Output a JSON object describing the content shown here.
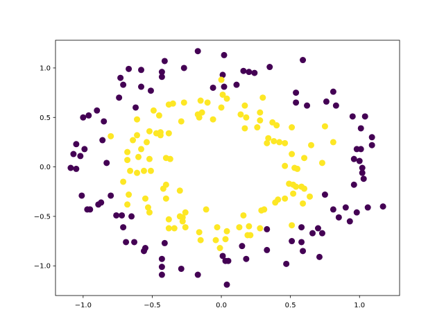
{
  "chart_data": {
    "type": "scatter",
    "xlim": [
      -1.2,
      1.29
    ],
    "ylim": [
      -1.3,
      1.28
    ],
    "xticks": [
      {
        "value": -1,
        "label": "−1.0"
      },
      {
        "value": -0.5,
        "label": "−0.5"
      },
      {
        "value": 0,
        "label": "0.0"
      },
      0.5,
      {
        "value": 1,
        "label": "1.0"
      }
    ],
    "yticks": [
      {
        "value": -1,
        "label": "−1.0"
      },
      {
        "value": -0.5,
        "label": "−0.5"
      },
      {
        "value": 0,
        "label": "0.0"
      },
      0.5,
      {
        "value": 1,
        "label": "1.0"
      }
    ],
    "grid": false,
    "series": [
      {
        "color": "#440154",
        "x": [
          -0.17,
          0.02,
          -0.41,
          -0.27,
          0.35,
          0.59,
          0.16,
          0.2,
          0.24,
          -0.67,
          -0.58,
          -0.43,
          -0.43,
          -0.73,
          0.01,
          0.11,
          -0.06,
          0.02,
          -0.71,
          -0.58,
          0.54,
          0.81,
          -0.51,
          -0.74,
          0.54,
          0.62,
          0.76,
          0.83,
          -0.62,
          -0.9,
          -0.96,
          -1.0,
          -0.85,
          0.95,
          1.04,
          1.01,
          1.09,
          -0.86,
          -1.05,
          -0.99,
          1.09,
          0.98,
          1.01,
          -1.07,
          -1.02,
          0.96,
          1.0,
          -0.83,
          -1.09,
          -1.05,
          1.02,
          1.02,
          1.03,
          0.96,
          -1.01,
          -0.8,
          0.75,
          -0.87,
          -0.97,
          -0.95,
          -0.89,
          0.81,
          0.9,
          1.06,
          1.17,
          -0.72,
          -0.76,
          -0.65,
          0.98,
          0.85,
          -0.71,
          0.93,
          0.58,
          0.51,
          0.58,
          0.66,
          0.7,
          0.73,
          -0.69,
          -0.63,
          -0.55,
          -0.56,
          0.59,
          -0.41,
          0.15,
          0.18,
          0.33,
          0.01,
          0.03,
          0.05,
          0.71,
          -0.43,
          -0.43,
          -0.29,
          0.47,
          -0.43,
          -0.17,
          0.04,
          0.33
        ],
        "values": [
          1.17,
          1.13,
          1.07,
          1.0,
          1.01,
          1.08,
          0.97,
          0.96,
          0.95,
          0.99,
          0.98,
          0.96,
          0.91,
          0.9,
          0.93,
          0.83,
          0.8,
          0.81,
          0.83,
          0.81,
          0.75,
          0.76,
          0.77,
          0.7,
          0.65,
          0.62,
          0.66,
          0.62,
          0.6,
          0.57,
          0.52,
          0.5,
          0.46,
          0.51,
          0.51,
          0.39,
          0.3,
          0.27,
          0.23,
          0.18,
          0.22,
          0.18,
          0.18,
          0.13,
          0.11,
          0.08,
          0.06,
          0.04,
          -0.01,
          -0.02,
          -0.01,
          -0.06,
          -0.12,
          -0.18,
          -0.29,
          -0.29,
          -0.28,
          -0.36,
          -0.43,
          -0.43,
          -0.38,
          -0.43,
          -0.41,
          -0.41,
          -0.4,
          -0.49,
          -0.49,
          -0.5,
          -0.46,
          -0.51,
          -0.61,
          -0.55,
          -0.61,
          -0.75,
          -0.76,
          -0.67,
          -0.62,
          -0.67,
          -0.76,
          -0.76,
          -0.82,
          -0.85,
          -0.85,
          -0.77,
          -0.8,
          -0.93,
          -0.84,
          -0.9,
          -0.95,
          -0.95,
          -0.91,
          -0.93,
          -1.01,
          -1.03,
          -0.98,
          -1.09,
          -1.09,
          -1.19,
          -0.63
        ]
      },
      {
        "color": "#fde725",
        "x": [
          0.0,
          0.01,
          0.3,
          0.04,
          -0.15,
          -0.1,
          0.17,
          -0.38,
          -0.35,
          -0.49,
          -0.27,
          0.0,
          0.14,
          0.28,
          -0.17,
          -0.14,
          0.18,
          -0.06,
          -0.16,
          -0.29,
          -0.45,
          0.28,
          -0.61,
          0.26,
          0.17,
          0.37,
          0.4,
          0.51,
          0.75,
          -0.8,
          -0.52,
          -0.47,
          -0.44,
          -0.38,
          -0.61,
          -0.64,
          -0.44,
          -0.54,
          0.34,
          0.38,
          0.33,
          0.42,
          0.46,
          0.65,
          0.81,
          -0.58,
          -0.68,
          -0.68,
          -0.6,
          -0.4,
          -0.37,
          -0.52,
          0.73,
          0.51,
          0.6,
          0.46,
          0.53,
          0.55,
          -0.66,
          -0.56,
          -0.51,
          -0.61,
          -0.71,
          -0.4,
          -0.42,
          -0.3,
          0.49,
          0.52,
          0.54,
          0.58,
          0.6,
          0.64,
          -0.67,
          -0.55,
          -0.4,
          0.52,
          0.59,
          0.46,
          0.41,
          0.39,
          -0.68,
          -0.53,
          -0.11,
          -0.26,
          0.31,
          0.29,
          0.16,
          -0.28,
          -0.38,
          -0.3,
          -0.28,
          -0.52,
          0.13,
          -0.03,
          0.2,
          0.21,
          0.19,
          0.51,
          -0.38,
          -0.34,
          -0.26,
          -0.15,
          -0.04,
          0.04,
          -0.01,
          0.28,
          -0.16,
          0.03
        ],
        "values": [
          0.88,
          0.73,
          0.7,
          0.69,
          0.67,
          0.65,
          0.62,
          0.63,
          0.64,
          0.57,
          0.65,
          0.6,
          0.53,
          0.55,
          0.53,
          0.55,
          0.5,
          0.48,
          0.5,
          0.46,
          0.52,
          0.47,
          0.48,
          0.4,
          0.39,
          0.45,
          0.42,
          0.4,
          0.41,
          0.31,
          0.36,
          0.34,
          0.35,
          0.34,
          0.32,
          0.27,
          0.32,
          0.25,
          0.29,
          0.26,
          0.24,
          0.25,
          0.24,
          0.22,
          0.25,
          0.18,
          0.15,
          0.07,
          0.1,
          0.09,
          0.08,
          0.08,
          0.04,
          0.13,
          0.09,
          0.01,
          -0.01,
          -0.02,
          -0.04,
          -0.04,
          -0.04,
          -0.06,
          -0.15,
          -0.18,
          -0.22,
          -0.24,
          -0.17,
          -0.18,
          -0.2,
          -0.2,
          -0.22,
          -0.3,
          -0.28,
          -0.32,
          -0.32,
          -0.27,
          -0.37,
          -0.32,
          -0.33,
          -0.36,
          -0.38,
          -0.41,
          -0.43,
          -0.46,
          -0.43,
          -0.44,
          -0.49,
          -0.51,
          -0.53,
          -0.5,
          -0.55,
          -0.46,
          -0.61,
          -0.61,
          -0.6,
          -0.69,
          -0.69,
          -0.59,
          -0.62,
          -0.62,
          -0.61,
          -0.74,
          -0.74,
          -0.65,
          -0.82,
          -0.62,
          -0.66,
          -0.73
        ]
      }
    ]
  }
}
